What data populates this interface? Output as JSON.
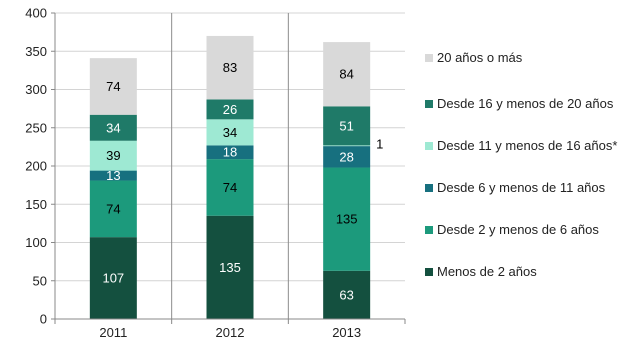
{
  "chart_data": {
    "type": "bar",
    "stacked": true,
    "categories": [
      "2011",
      "2012",
      "2013"
    ],
    "ylim": [
      0,
      400
    ],
    "yticks": [
      0,
      50,
      100,
      150,
      200,
      250,
      300,
      350,
      400
    ],
    "grid": true,
    "legend_position": "right",
    "series": [
      {
        "name": "Menos de 2 años",
        "values": [
          107,
          135,
          63
        ],
        "labels": [
          "107",
          "135",
          "63"
        ],
        "color": "#14503f",
        "label_color": "#ffffff"
      },
      {
        "name": "Desde 2 y menos de 6 años",
        "values": [
          74,
          74,
          135
        ],
        "labels": [
          "74",
          "74",
          "135"
        ],
        "color": "#1c9a7c",
        "label_color": "#000000"
      },
      {
        "name": "Desde 6 y menos de 11 años",
        "values": [
          13,
          18,
          28
        ],
        "labels": [
          "13",
          "18",
          "28"
        ],
        "color": "#17707f",
        "label_color": "#ffffff"
      },
      {
        "name": "Desde 11 y menos de 16 años*",
        "values": [
          39,
          34,
          1
        ],
        "labels": [
          "39",
          "34",
          "1"
        ],
        "color": "#9ee9d3",
        "label_color": "#000000"
      },
      {
        "name": "Desde 16 y menos de 20 años",
        "values": [
          34,
          26,
          51
        ],
        "labels": [
          "34",
          "26",
          "51"
        ],
        "color": "#1f7a68",
        "label_color": "#ffffff"
      },
      {
        "name": "20 años o más",
        "values": [
          74,
          83,
          84
        ],
        "labels": [
          "74",
          "83",
          "84"
        ],
        "color": "#d9d9d9",
        "label_color": "#000000"
      }
    ],
    "legend_order": [
      5,
      4,
      3,
      2,
      1,
      0
    ]
  }
}
